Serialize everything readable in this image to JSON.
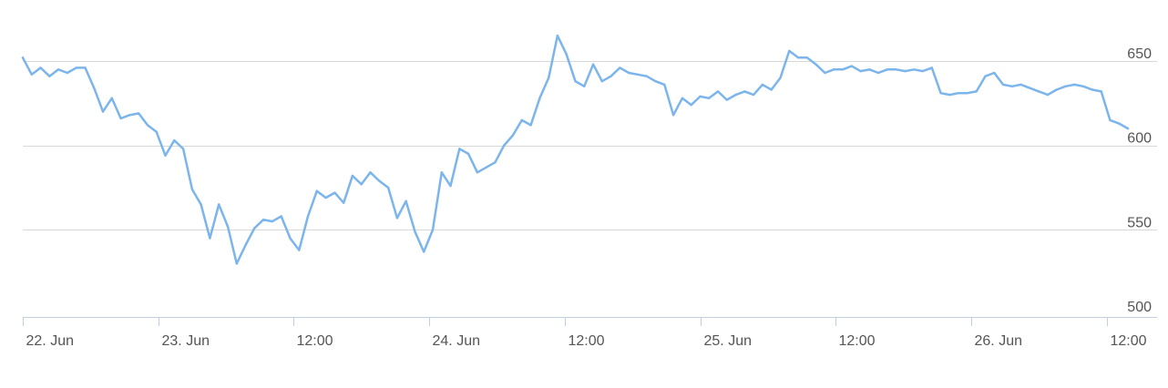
{
  "chart_data": {
    "type": "line",
    "title": "",
    "xlabel": "",
    "ylabel": "",
    "ylim": [
      500,
      650
    ],
    "y_ticks": [
      "500",
      "550",
      "600",
      "650"
    ],
    "y_axis_side": "right",
    "x_ticks": [
      "22. Jun",
      "23. Jun",
      "12:00",
      "24. Jun",
      "12:00",
      "25. Jun",
      "12:00",
      "26. Jun",
      "12:00"
    ],
    "grid": true,
    "legend": "none",
    "colors": {
      "series": "#7cb5ec",
      "grid": "#d8d8d8",
      "axis": "#c0d0e0",
      "label": "#555555"
    },
    "series": [
      {
        "name": "",
        "points": [
          [
            0,
            652
          ],
          [
            1,
            642
          ],
          [
            2,
            646
          ],
          [
            3,
            641
          ],
          [
            4,
            645
          ],
          [
            5,
            643
          ],
          [
            6,
            646
          ],
          [
            7,
            646
          ],
          [
            8,
            634
          ],
          [
            9,
            620
          ],
          [
            10,
            628
          ],
          [
            11,
            616
          ],
          [
            12,
            618
          ],
          [
            13,
            619
          ],
          [
            14,
            612
          ],
          [
            15,
            608
          ],
          [
            16,
            594
          ],
          [
            17,
            603
          ],
          [
            18,
            598
          ],
          [
            19,
            574
          ],
          [
            20,
            565
          ],
          [
            21,
            545
          ],
          [
            22,
            565
          ],
          [
            23,
            552
          ],
          [
            24,
            530
          ],
          [
            25,
            541
          ],
          [
            26,
            551
          ],
          [
            27,
            556
          ],
          [
            28,
            555
          ],
          [
            29,
            558
          ],
          [
            30,
            545
          ],
          [
            31,
            538
          ],
          [
            32,
            558
          ],
          [
            33,
            573
          ],
          [
            34,
            569
          ],
          [
            35,
            572
          ],
          [
            36,
            566
          ],
          [
            37,
            582
          ],
          [
            38,
            577
          ],
          [
            39,
            584
          ],
          [
            40,
            579
          ],
          [
            41,
            575
          ],
          [
            42,
            557
          ],
          [
            43,
            567
          ],
          [
            44,
            549
          ],
          [
            45,
            537
          ],
          [
            46,
            550
          ],
          [
            47,
            584
          ],
          [
            48,
            576
          ],
          [
            49,
            598
          ],
          [
            50,
            595
          ],
          [
            51,
            584
          ],
          [
            52,
            587
          ],
          [
            53,
            590
          ],
          [
            54,
            600
          ],
          [
            55,
            606
          ],
          [
            56,
            615
          ],
          [
            57,
            612
          ],
          [
            58,
            628
          ],
          [
            59,
            640
          ],
          [
            60,
            665
          ],
          [
            61,
            654
          ],
          [
            62,
            638
          ],
          [
            63,
            635
          ],
          [
            64,
            648
          ],
          [
            65,
            638
          ],
          [
            66,
            641
          ],
          [
            67,
            646
          ],
          [
            68,
            643
          ],
          [
            69,
            642
          ],
          [
            70,
            641
          ],
          [
            71,
            638
          ],
          [
            72,
            636
          ],
          [
            73,
            618
          ],
          [
            74,
            628
          ],
          [
            75,
            624
          ],
          [
            76,
            629
          ],
          [
            77,
            628
          ],
          [
            78,
            632
          ],
          [
            79,
            627
          ],
          [
            80,
            630
          ],
          [
            81,
            632
          ],
          [
            82,
            630
          ],
          [
            83,
            636
          ],
          [
            84,
            633
          ],
          [
            85,
            640
          ],
          [
            86,
            656
          ],
          [
            87,
            652
          ],
          [
            88,
            652
          ],
          [
            89,
            648
          ],
          [
            90,
            643
          ],
          [
            91,
            645
          ],
          [
            92,
            645
          ],
          [
            93,
            647
          ],
          [
            94,
            644
          ],
          [
            95,
            645
          ],
          [
            96,
            643
          ],
          [
            97,
            645
          ],
          [
            98,
            645
          ],
          [
            99,
            644
          ],
          [
            100,
            645
          ],
          [
            101,
            644
          ],
          [
            102,
            646
          ],
          [
            103,
            631
          ],
          [
            104,
            630
          ],
          [
            105,
            631
          ],
          [
            106,
            631
          ],
          [
            107,
            632
          ],
          [
            108,
            641
          ],
          [
            109,
            643
          ],
          [
            110,
            636
          ],
          [
            111,
            635
          ],
          [
            112,
            636
          ],
          [
            113,
            634
          ],
          [
            114,
            632
          ],
          [
            115,
            630
          ],
          [
            116,
            633
          ],
          [
            117,
            635
          ],
          [
            118,
            636
          ],
          [
            119,
            635
          ],
          [
            120,
            633
          ],
          [
            121,
            632
          ],
          [
            122,
            615
          ],
          [
            123,
            613
          ],
          [
            124,
            610
          ]
        ]
      }
    ]
  }
}
